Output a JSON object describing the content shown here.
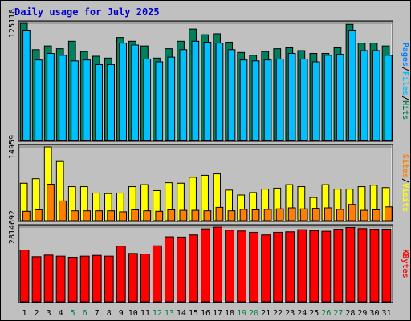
{
  "title": "Daily usage for July 2025",
  "chart_data": [
    {
      "type": "bar",
      "categories": [
        "1",
        "2",
        "3",
        "4",
        "5",
        "6",
        "7",
        "8",
        "9",
        "10",
        "11",
        "12",
        "13",
        "14",
        "15",
        "16",
        "17",
        "18",
        "19",
        "20",
        "21",
        "22",
        "23",
        "24",
        "25",
        "26",
        "27",
        "28",
        "29",
        "30",
        "31"
      ],
      "weekend_days": [
        "5",
        "6",
        "12",
        "13",
        "19",
        "20",
        "26",
        "27"
      ],
      "ytick_label": "125118",
      "ylim": [
        0,
        125118
      ],
      "legend": [
        "Pages",
        "Files",
        "Hits"
      ],
      "series": [
        {
          "name": "Hits",
          "color": "#00805C",
          "values": [
            125118,
            97000,
            101000,
            98000,
            106000,
            95000,
            90000,
            88000,
            110000,
            106000,
            101000,
            88000,
            98000,
            106000,
            119000,
            113000,
            114000,
            105000,
            94000,
            91000,
            95000,
            98000,
            99000,
            96000,
            93000,
            93000,
            99000,
            124000,
            104000,
            104000,
            101000
          ]
        },
        {
          "name": "Files",
          "color": "#00C0FF",
          "values": [
            117000,
            86000,
            93000,
            91000,
            85000,
            86000,
            81000,
            81000,
            104000,
            102000,
            87000,
            84000,
            89000,
            97000,
            106000,
            105000,
            104000,
            97000,
            86000,
            85000,
            86000,
            87000,
            93000,
            87000,
            84000,
            91000,
            92000,
            117000,
            96000,
            96000,
            91000
          ]
        },
        {
          "name": "Pages",
          "color": "#0080FF",
          "values": [
            0,
            0,
            0,
            0,
            0,
            0,
            0,
            0,
            0,
            0,
            0,
            0,
            0,
            0,
            0,
            0,
            0,
            0,
            0,
            0,
            0,
            0,
            0,
            0,
            0,
            0,
            0,
            0,
            0,
            0,
            0
          ]
        }
      ]
    },
    {
      "type": "bar",
      "ytick_label": "14959",
      "ylim": [
        0,
        14959
      ],
      "legend": [
        "Sites",
        "Visits"
      ],
      "series": [
        {
          "name": "Visits",
          "color": "#FFFF00",
          "values": [
            7600,
            8500,
            14959,
            12000,
            6900,
            6900,
            5600,
            5500,
            5600,
            6900,
            7300,
            6100,
            7700,
            7600,
            8800,
            9200,
            9500,
            6200,
            5200,
            5700,
            6400,
            6600,
            7300,
            6900,
            4700,
            7300,
            6400,
            6400,
            6900,
            7200,
            6700
          ]
        },
        {
          "name": "Sites",
          "color": "#FF8000",
          "values": [
            1900,
            2200,
            7400,
            4000,
            2000,
            2000,
            2000,
            2000,
            1800,
            2200,
            2000,
            1900,
            2200,
            2100,
            2100,
            2000,
            2700,
            2000,
            2300,
            2200,
            2300,
            2400,
            2600,
            2400,
            2500,
            2600,
            2300,
            3300,
            2100,
            2200,
            2800
          ]
        }
      ]
    },
    {
      "type": "bar",
      "ytick_label": "2814692",
      "ylim": [
        0,
        2814692
      ],
      "legend": [
        "KBytes"
      ],
      "series": [
        {
          "name": "KBytes",
          "color": "#FF0000",
          "values": [
            1950000,
            1700000,
            1760000,
            1720000,
            1680000,
            1720000,
            1750000,
            1720000,
            2100000,
            1820000,
            1800000,
            2110000,
            2450000,
            2440000,
            2520000,
            2750000,
            2814692,
            2700000,
            2670000,
            2620000,
            2520000,
            2620000,
            2640000,
            2720000,
            2680000,
            2660000,
            2740000,
            2800000,
            2760000,
            2740000,
            2740000
          ]
        }
      ]
    }
  ]
}
